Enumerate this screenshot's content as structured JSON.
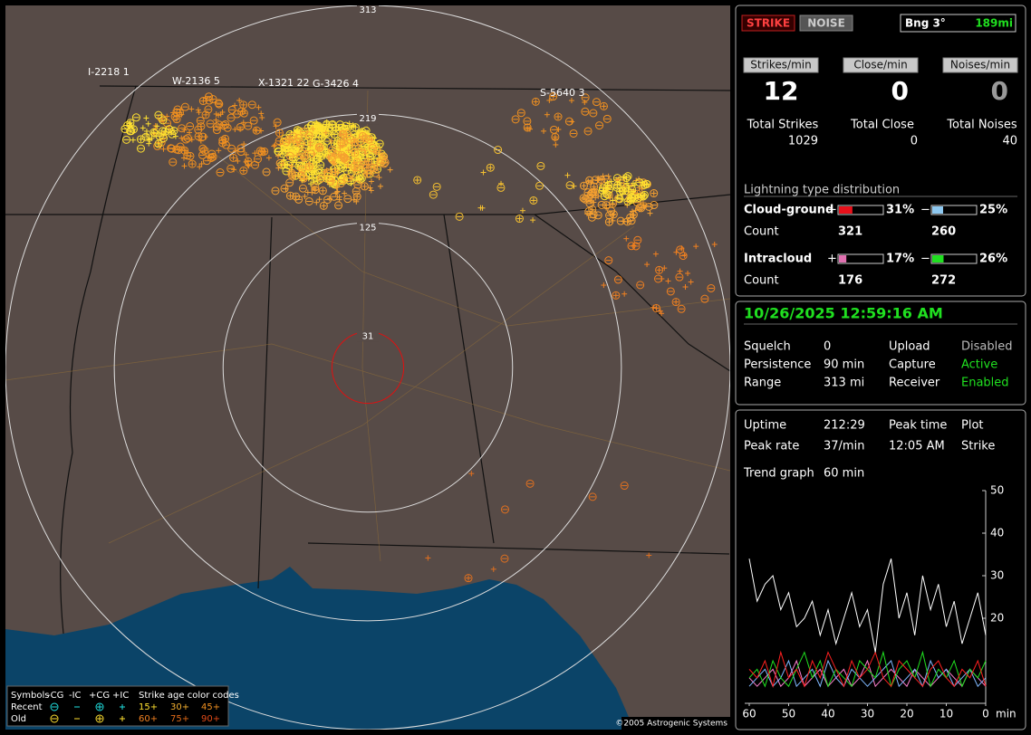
{
  "map": {
    "range_rings": [
      31,
      125,
      219,
      313
    ],
    "storm_labels": [
      "I-2218 1",
      "W-2136 5",
      "X-1321 22",
      "G-3426 4",
      "S-5640 3"
    ],
    "legend": {
      "symbols": "Symbols",
      "columns": [
        "-CG",
        "-IC",
        "+CG",
        "+IC"
      ],
      "age_title": "Strike age color codes",
      "rows": [
        "Recent",
        "Old"
      ],
      "recent_ages": [
        "15+",
        "30+",
        "45+"
      ],
      "old_ages": [
        "60+",
        "75+",
        "90+"
      ]
    },
    "copyright": "©2005 Astrogenic Systems"
  },
  "status": {
    "buttons": [
      "STRIKE",
      "NOISE"
    ],
    "bearing": "Bng 3°",
    "distance": "189mi"
  },
  "rates": [
    {
      "label": "Strikes/min",
      "value": 12,
      "total_label": "Total Strikes",
      "total": 1029
    },
    {
      "label": "Close/min",
      "value": 0,
      "total_label": "Total Close",
      "total": 0
    },
    {
      "label": "Noises/min",
      "value": 0,
      "total_label": "Total Noises",
      "total": 40
    }
  ],
  "distribution": {
    "title": "Lightning type distribution",
    "count_label": "Count",
    "types": [
      {
        "name": "Cloud-ground",
        "plus_sign": "+",
        "minus_sign": "−",
        "plus_percent": 31,
        "plus_percent_label": "31%",
        "plus_color": "#e8101a",
        "minus_percent": 25,
        "minus_percent_label": "25%",
        "minus_color": "#8ec8f0",
        "plus_count": 321,
        "minus_count": 260
      },
      {
        "name": "Intracloud",
        "plus_sign": "+",
        "minus_sign": "−",
        "plus_percent": 17,
        "plus_percent_label": "17%",
        "plus_color": "#e070b0",
        "minus_percent": 26,
        "minus_percent_label": "26%",
        "minus_color": "#20e020",
        "plus_count": 176,
        "minus_count": 272
      }
    ]
  },
  "info": {
    "datetime": "10/26/2025 12:59:16 AM",
    "rows": [
      [
        "Squelch",
        "0",
        "Upload",
        "Disabled"
      ],
      [
        "Persistence",
        "90 min",
        "Capture",
        "Active"
      ],
      [
        "Range",
        "313 mi",
        "Receiver",
        "Enabled"
      ]
    ]
  },
  "stats": {
    "uptime_label": "Uptime",
    "uptime": "212:29",
    "peak_time_label": "Peak time",
    "peak_time": "12:05 AM",
    "plot_label": "Plot",
    "plot": "Strike",
    "peak_rate_label": "Peak rate",
    "peak_rate": "37/min",
    "trend_label": "Trend graph",
    "trend": "60 min"
  },
  "chart_data": {
    "type": "line",
    "xlabel": "min",
    "x": [
      60,
      58,
      56,
      54,
      52,
      50,
      48,
      46,
      44,
      42,
      40,
      38,
      36,
      34,
      32,
      30,
      28,
      26,
      24,
      22,
      20,
      18,
      16,
      14,
      12,
      10,
      8,
      6,
      4,
      2,
      0
    ],
    "xlim": [
      60,
      0
    ],
    "xticks": [
      60,
      50,
      40,
      30,
      20,
      10,
      0
    ],
    "ylim": [
      0,
      50
    ],
    "yticks": [
      20,
      30,
      40,
      50
    ],
    "series": [
      {
        "color": "#ffffff",
        "values": [
          34,
          24,
          28,
          30,
          22,
          26,
          18,
          20,
          24,
          16,
          22,
          14,
          20,
          26,
          18,
          22,
          12,
          28,
          34,
          20,
          26,
          16,
          30,
          22,
          28,
          18,
          24,
          14,
          20,
          26,
          16
        ]
      },
      {
        "color": "#ff2020",
        "values": [
          8,
          6,
          10,
          4,
          12,
          6,
          8,
          4,
          10,
          6,
          12,
          8,
          4,
          10,
          6,
          8,
          12,
          6,
          4,
          10,
          8,
          6,
          4,
          8,
          10,
          6,
          4,
          8,
          6,
          10,
          4
        ]
      },
      {
        "color": "#20e020",
        "values": [
          6,
          8,
          4,
          10,
          6,
          4,
          8,
          12,
          6,
          10,
          4,
          8,
          6,
          4,
          10,
          8,
          6,
          12,
          4,
          8,
          10,
          6,
          12,
          4,
          8,
          6,
          10,
          4,
          8,
          6,
          10
        ]
      },
      {
        "color": "#80b8ff",
        "values": [
          4,
          6,
          8,
          4,
          6,
          10,
          4,
          6,
          8,
          4,
          10,
          6,
          4,
          8,
          6,
          4,
          6,
          8,
          10,
          4,
          6,
          8,
          4,
          10,
          6,
          8,
          4,
          6,
          8,
          4,
          6
        ]
      },
      {
        "color": "#ff80d0",
        "values": [
          6,
          4,
          6,
          8,
          4,
          6,
          10,
          4,
          6,
          8,
          4,
          6,
          8,
          4,
          6,
          10,
          4,
          6,
          8,
          6,
          4,
          8,
          6,
          4,
          6,
          8,
          6,
          4,
          8,
          6,
          4
        ]
      }
    ]
  }
}
